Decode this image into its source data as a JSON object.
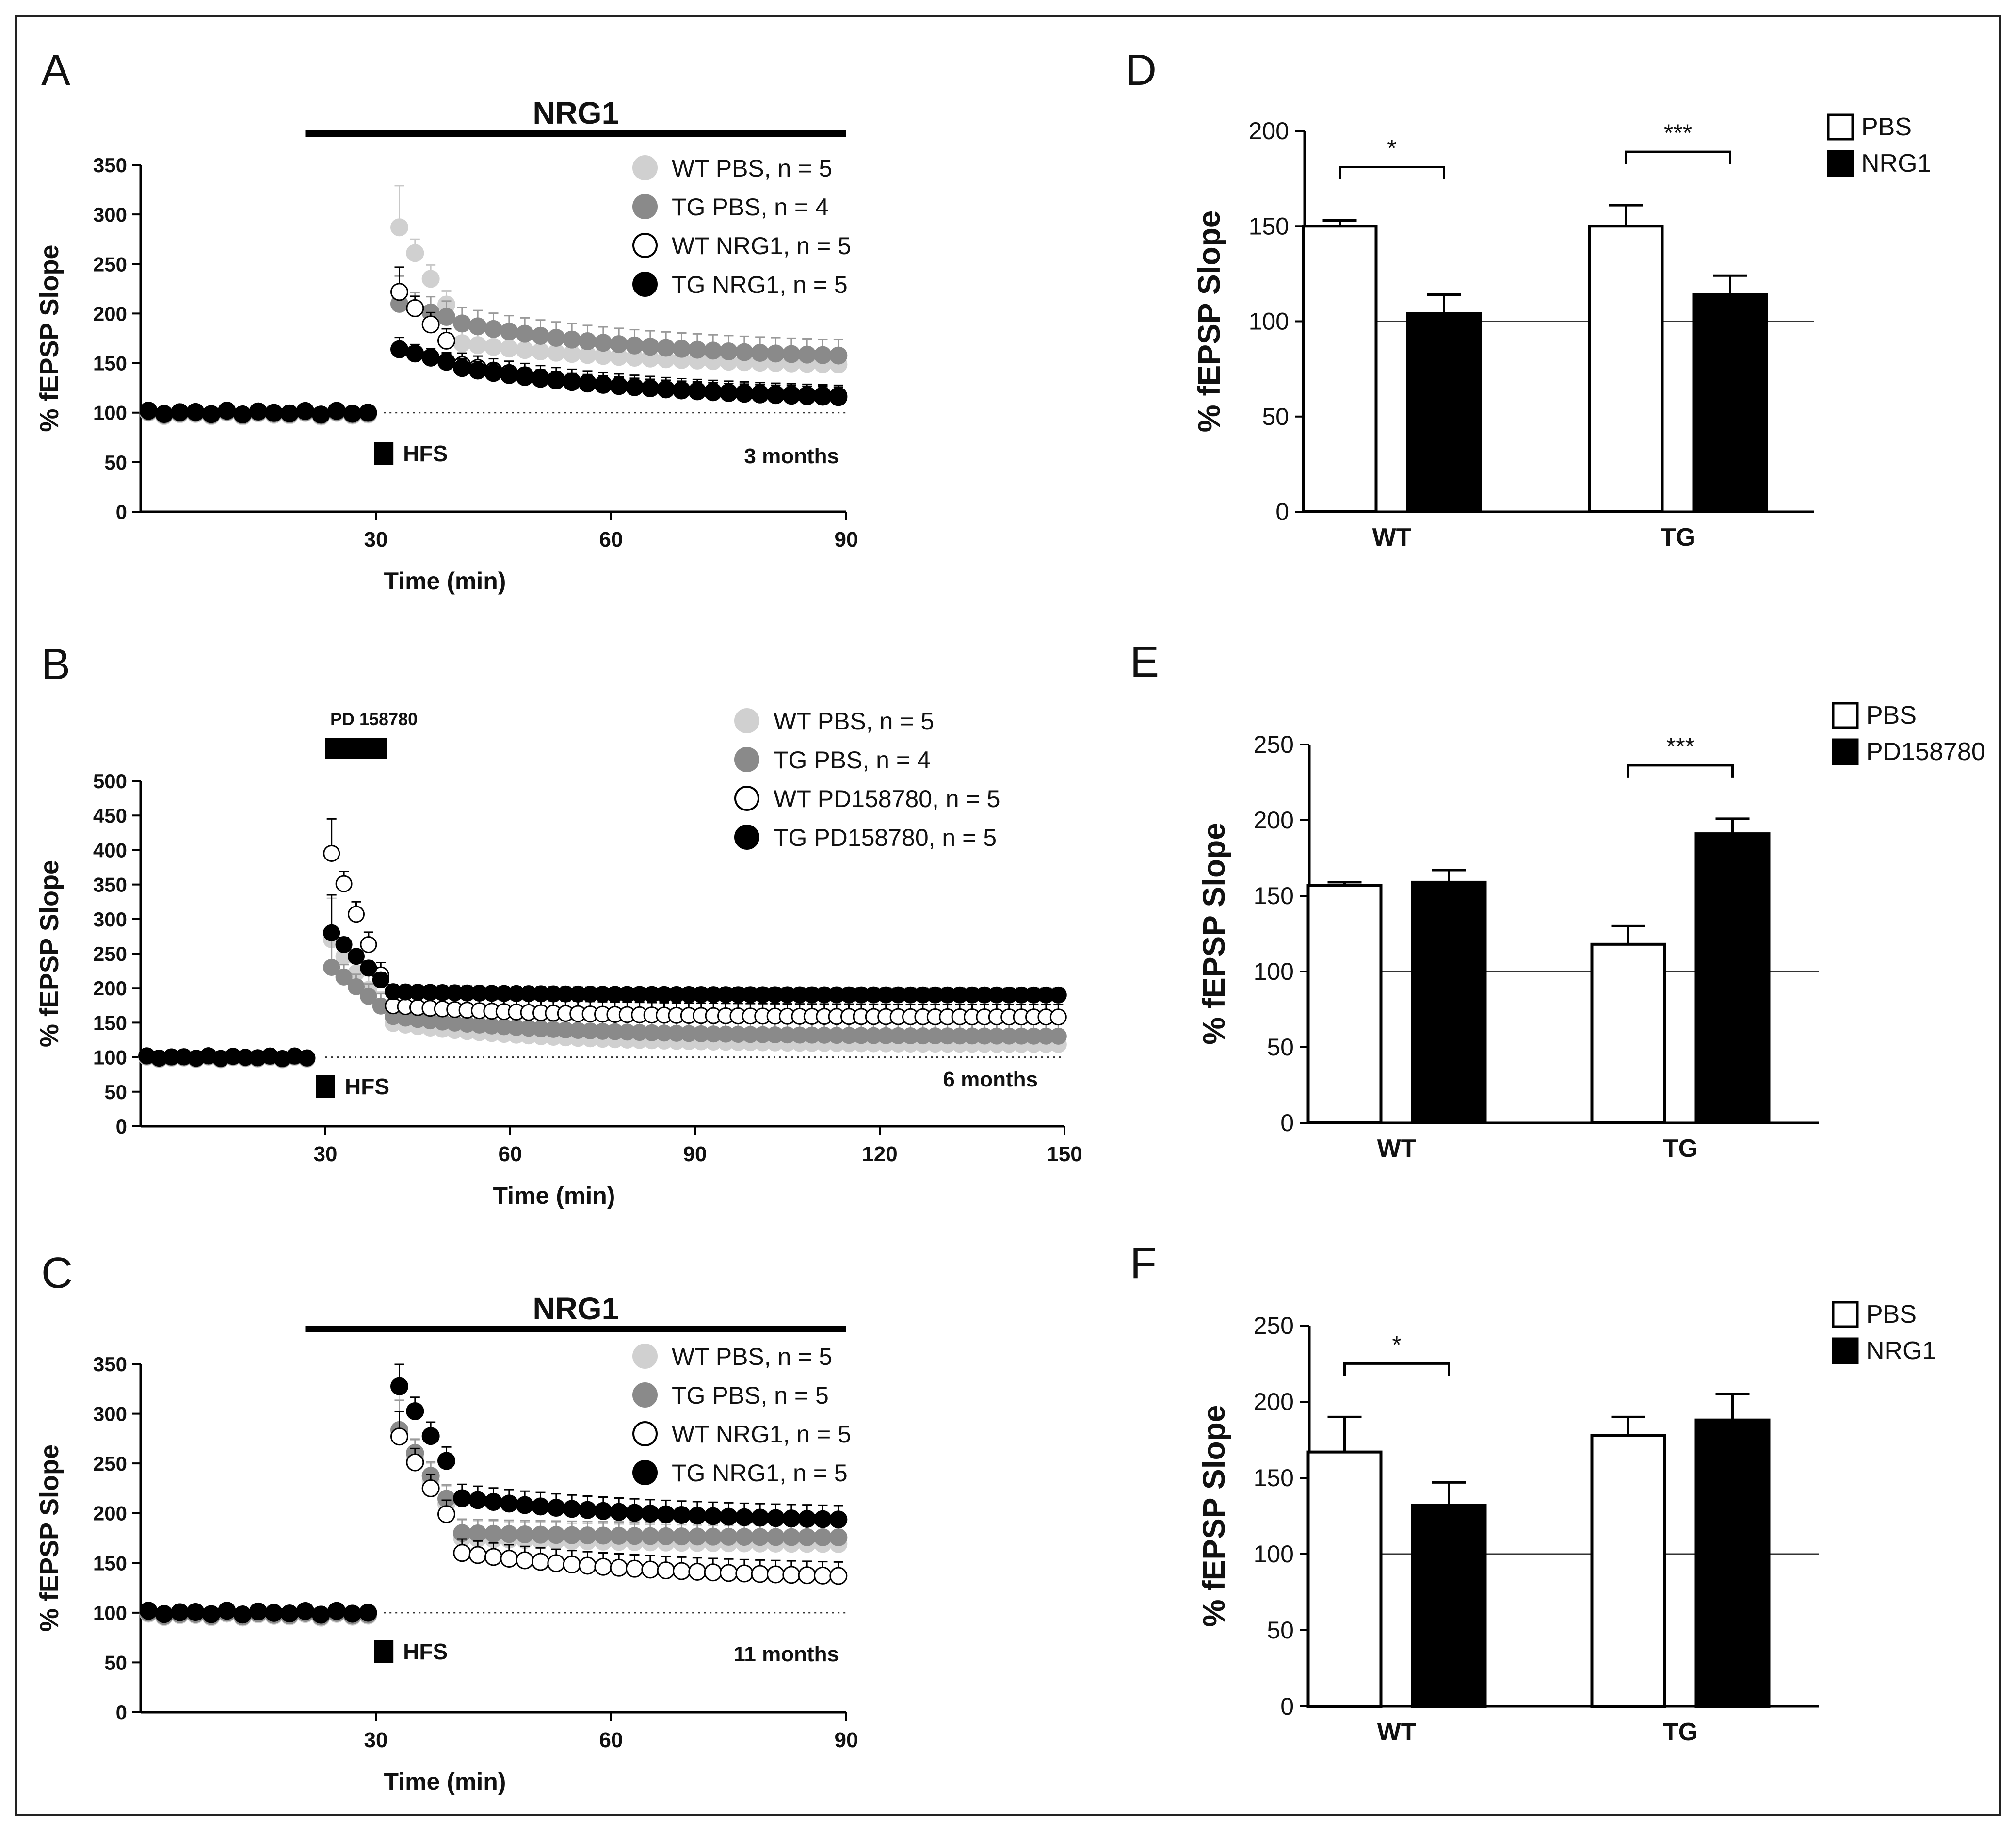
{
  "chart_data": [
    {
      "id": "A",
      "type": "scatter",
      "panel_letter": "A",
      "drug_label": "NRG1",
      "drug_bar": [
        21,
        90
      ],
      "ylabel": "% fEPSP Slope",
      "xlabel": "Time (min)",
      "xlim": [
        0,
        90
      ],
      "ylim": [
        0,
        350
      ],
      "xticks": [
        "30",
        "60",
        "90"
      ],
      "xtick_values": [
        30,
        60,
        90
      ],
      "yticks": [
        "0",
        "50",
        "100",
        "150",
        "200",
        "250",
        "300",
        "350"
      ],
      "stim_label": "HFS",
      "stim_time": 31,
      "age_label": "3 months",
      "baseline": 100,
      "series": [
        {
          "name": "WT PBS, n = 5",
          "style": "light",
          "b": 98,
          "peak": 300,
          "peak_err": 42,
          "mid": 170,
          "end": 145,
          "err": 14
        },
        {
          "name": "TG PBS, n = 4",
          "style": "gray",
          "b": 99,
          "peak": 212,
          "peak_err": 28,
          "mid": 190,
          "end": 152,
          "err": 16
        },
        {
          "name": "WT NRG1, n = 5",
          "style": "open",
          "b": 100,
          "peak": 230,
          "peak_err": 25,
          "mid": 148,
          "end": 110,
          "err": 12
        },
        {
          "name": "TG NRG1, n = 5",
          "style": "black",
          "b": 100,
          "peak": 166,
          "peak_err": 12,
          "mid": 145,
          "end": 112,
          "err": 9
        }
      ]
    },
    {
      "id": "B",
      "type": "scatter",
      "panel_letter": "B",
      "drug_label": "PD 158780",
      "drug_bar": [
        30,
        40
      ],
      "ylabel": "% fEPSP Slope",
      "xlabel": "Time (min)",
      "xlim": [
        0,
        150
      ],
      "ylim": [
        0,
        500
      ],
      "xticks": [
        "30",
        "60",
        "90",
        "120",
        "150"
      ],
      "xtick_values": [
        30,
        60,
        90,
        120,
        150
      ],
      "yticks": [
        "0",
        "50",
        "100",
        "150",
        "200",
        "250",
        "300",
        "350",
        "400",
        "450",
        "500"
      ],
      "stim_label": "HFS",
      "stim_time": 30,
      "age_label": "6 months",
      "baseline": 100,
      "series": [
        {
          "name": "WT PBS, n = 5",
          "style": "light",
          "b": 98,
          "peak": 270,
          "peak_err": 60,
          "mid": 150,
          "end": 118,
          "err": 20
        },
        {
          "name": "TG PBS, n = 4",
          "style": "gray",
          "b": 99,
          "peak": 230,
          "peak_err": 50,
          "mid": 160,
          "end": 130,
          "err": 18
        },
        {
          "name": "WT PD158780, n = 5",
          "style": "open",
          "b": 100,
          "peak": 395,
          "peak_err": 50,
          "mid": 175,
          "end": 158,
          "err": 18
        },
        {
          "name": "TG PD158780, n = 5",
          "style": "black",
          "b": 100,
          "peak": 280,
          "peak_err": 55,
          "mid": 195,
          "end": 190,
          "err": 10
        }
      ]
    },
    {
      "id": "C",
      "type": "scatter",
      "panel_letter": "C",
      "drug_label": "NRG1",
      "drug_bar": [
        21,
        90
      ],
      "ylabel": "% fEPSP Slope",
      "xlabel": "Time (min)",
      "xlim": [
        0,
        90
      ],
      "ylim": [
        0,
        350
      ],
      "xticks": [
        "30",
        "60",
        "90"
      ],
      "xtick_values": [
        30,
        60,
        90
      ],
      "yticks": [
        "0",
        "50",
        "100",
        "150",
        "200",
        "250",
        "300",
        "350"
      ],
      "stim_label": "HFS",
      "stim_time": 31,
      "age_label": "11 months",
      "baseline": 100,
      "series": [
        {
          "name": "WT PBS, n = 5",
          "style": "light",
          "b": 97,
          "peak": 290,
          "peak_err": 45,
          "mid": 175,
          "end": 168,
          "err": 18
        },
        {
          "name": "TG PBS, n = 5",
          "style": "gray",
          "b": 98,
          "peak": 295,
          "peak_err": 30,
          "mid": 180,
          "end": 175,
          "err": 14
        },
        {
          "name": "WT NRG1, n = 5",
          "style": "open",
          "b": 100,
          "peak": 290,
          "peak_err": 25,
          "mid": 160,
          "end": 133,
          "err": 14
        },
        {
          "name": "TG NRG1, n = 5",
          "style": "black",
          "b": 100,
          "peak": 340,
          "peak_err": 22,
          "mid": 215,
          "end": 190,
          "err": 14
        }
      ]
    },
    {
      "id": "D",
      "type": "bar",
      "panel_letter": "D",
      "ylabel": "% fEPSP Slope",
      "ylim": [
        0,
        200
      ],
      "yticks": [
        "0",
        "50",
        "100",
        "150",
        "200"
      ],
      "categories": [
        "WT",
        "TG"
      ],
      "legend": [
        "PBS",
        "NRG1"
      ],
      "series": [
        {
          "name": "PBS",
          "values": [
            150,
            150
          ],
          "errors": [
            3,
            11
          ]
        },
        {
          "name": "NRG1",
          "values": [
            104,
            114
          ],
          "errors": [
            10,
            10
          ]
        }
      ],
      "significance": [
        "*",
        "***"
      ],
      "reference_line": 100
    },
    {
      "id": "E",
      "type": "bar",
      "panel_letter": "E",
      "ylabel": "% fEPSP Slope",
      "ylim": [
        0,
        250
      ],
      "yticks": [
        "0",
        "50",
        "100",
        "150",
        "200",
        "250"
      ],
      "categories": [
        "WT",
        "TG"
      ],
      "legend": [
        "PBS",
        "PD158780"
      ],
      "series": [
        {
          "name": "PBS",
          "values": [
            157,
            118
          ],
          "errors": [
            2,
            12
          ]
        },
        {
          "name": "PD158780",
          "values": [
            159,
            191
          ],
          "errors": [
            8,
            10
          ]
        }
      ],
      "significance": [
        "",
        "***"
      ],
      "reference_line": 100
    },
    {
      "id": "F",
      "type": "bar",
      "panel_letter": "F",
      "ylabel": "% fEPSP Slope",
      "ylim": [
        0,
        250
      ],
      "yticks": [
        "0",
        "50",
        "100",
        "150",
        "200",
        "250"
      ],
      "categories": [
        "WT",
        "TG"
      ],
      "legend": [
        "PBS",
        "NRG1"
      ],
      "series": [
        {
          "name": "PBS",
          "values": [
            167,
            178
          ],
          "errors": [
            23,
            12
          ]
        },
        {
          "name": "NRG1",
          "values": [
            132,
            188
          ],
          "errors": [
            15,
            17
          ]
        }
      ],
      "significance": [
        "*",
        ""
      ],
      "reference_line": 100
    }
  ]
}
